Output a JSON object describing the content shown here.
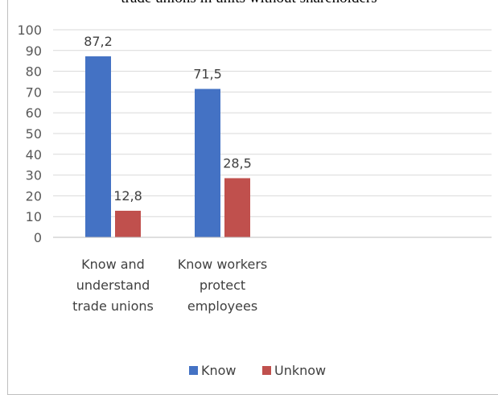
{
  "chart_data": {
    "type": "bar",
    "title": "trade unions in units without shareholders",
    "categories": [
      [
        "Know and",
        "understand",
        "trade unions"
      ],
      [
        "Know workers",
        "protect",
        "employees"
      ]
    ],
    "series": [
      {
        "name": "Know",
        "values": [
          87.2,
          71.5
        ],
        "labels": [
          "87,2",
          "71,5"
        ],
        "color": "#4472c4"
      },
      {
        "name": "Unknow",
        "values": [
          12.8,
          28.5
        ],
        "labels": [
          "12,8",
          "28,5"
        ],
        "color": "#c0504d"
      }
    ],
    "ylim": [
      0,
      100
    ],
    "yticks": [
      "0",
      "10",
      "20",
      "30",
      "40",
      "50",
      "60",
      "70",
      "80",
      "90",
      "100"
    ],
    "grid": true,
    "legend": "bottom",
    "xlabel": "",
    "ylabel": ""
  }
}
